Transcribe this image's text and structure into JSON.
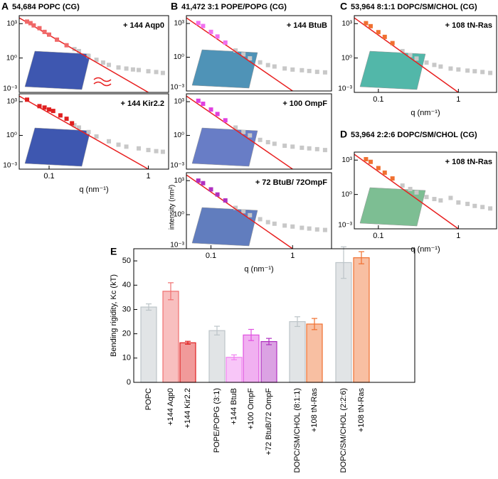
{
  "chart_data": [
    {
      "type": "scatter",
      "label": "A",
      "title": "54,684 POPC (CG)",
      "title_color": "#2e7fb4",
      "annotation": "+ 144 Aqp0",
      "annotation_color": "#f06060",
      "log_x": true,
      "log_y": true,
      "xlim": [
        0.05,
        1.6
      ],
      "ylim": [
        0.001,
        5000
      ],
      "yticks": [
        {
          "value": 0.001,
          "label": "10⁻³"
        },
        {
          "value": 1,
          "label": "10⁰"
        },
        {
          "value": 1000,
          "label": "10³"
        }
      ],
      "series": [
        {
          "style": "square",
          "color": "#c8c8c8",
          "x": [
            0.18,
            0.2,
            0.25,
            0.3,
            0.35,
            0.4,
            0.5,
            0.6,
            0.7,
            0.8,
            1,
            1.2,
            1.4
          ],
          "values": [
            6,
            4,
            1.5,
            0.7,
            0.4,
            0.25,
            0.15,
            0.12,
            0.1,
            0.09,
            0.07,
            0.06,
            0.05
          ]
        },
        {
          "style": "line",
          "color": "#e82020",
          "x": [
            0.05,
            1
          ],
          "values": [
            3200,
            0.001
          ]
        },
        {
          "style": "square",
          "color": "#f06868",
          "x": [
            0.06,
            0.065,
            0.07,
            0.08,
            0.09,
            0.1,
            0.12,
            0.15
          ],
          "values": [
            1500,
            1100,
            700,
            400,
            190,
            110,
            40,
            13
          ]
        }
      ]
    },
    {
      "type": "scatter",
      "annotation": "+ 144 Kir2.2",
      "annotation_color": "#e02828",
      "log_x": true,
      "log_y": true,
      "xlim": [
        0.05,
        1.6
      ],
      "ylim": [
        0.001,
        5000
      ],
      "xticks": [
        0.1,
        1
      ],
      "xlabel": "q (nm⁻¹)",
      "yticks": [
        {
          "value": 0.001,
          "label": "10⁻³"
        },
        {
          "value": 1,
          "label": "10⁰"
        },
        {
          "value": 1000,
          "label": "10³"
        }
      ],
      "series": [
        {
          "style": "square",
          "color": "#c8c8c8",
          "x": [
            0.18,
            0.2,
            0.25,
            0.3,
            0.4,
            0.5,
            0.6,
            0.8,
            1,
            1.2,
            1.4
          ],
          "values": [
            8,
            5,
            2,
            0.8,
            0.3,
            0.15,
            0.1,
            0.07,
            0.05,
            0.04,
            0.035
          ]
        },
        {
          "style": "line",
          "color": "#e82020",
          "x": [
            0.05,
            1
          ],
          "values": [
            3200,
            0.001
          ]
        },
        {
          "style": "square",
          "color": "#e02020",
          "x": [
            0.06,
            0.08,
            0.09,
            0.1,
            0.11,
            0.13,
            0.15,
            0.17
          ],
          "values": [
            1500,
            400,
            300,
            200,
            150,
            60,
            30,
            12
          ]
        }
      ]
    },
    {
      "type": "scatter",
      "label": "B",
      "title": "41,472 3:1 POPE/POPG (CG)",
      "title_color": "#2aa89a",
      "annotation": "+ 144 BtuB",
      "annotation_color": "#f060f0",
      "log_x": true,
      "log_y": true,
      "xlim": [
        0.05,
        3
      ],
      "ylim": [
        0.001,
        5000
      ],
      "yticks": [
        {
          "value": 0.001,
          "label": "10⁻³"
        },
        {
          "value": 1,
          "label": "10⁰"
        },
        {
          "value": 1000,
          "label": "10³"
        }
      ],
      "series": [
        {
          "style": "square",
          "color": "#c8c8c8",
          "x": [
            0.2,
            0.25,
            0.3,
            0.4,
            0.5,
            0.6,
            0.8,
            1,
            1.3,
            1.6,
            2,
            2.5
          ],
          "values": [
            4,
            1.8,
            0.8,
            0.35,
            0.2,
            0.15,
            0.1,
            0.08,
            0.07,
            0.06,
            0.05,
            0.045
          ]
        },
        {
          "style": "line",
          "color": "#e82020",
          "x": [
            0.05,
            1
          ],
          "values": [
            3200,
            0.001
          ]
        },
        {
          "style": "square",
          "color": "#f070f0",
          "x": [
            0.07,
            0.08,
            0.1,
            0.12,
            0.15
          ],
          "values": [
            1100,
            600,
            180,
            70,
            20
          ]
        }
      ]
    },
    {
      "type": "scatter",
      "annotation": "+ 100 OmpF",
      "annotation_color": "#e040e0",
      "log_x": true,
      "log_y": true,
      "xlim": [
        0.05,
        3
      ],
      "ylim": [
        0.001,
        5000
      ],
      "yticks": [
        {
          "value": 0.001,
          "label": "10⁻³"
        },
        {
          "value": 1,
          "label": "10⁰"
        },
        {
          "value": 1000,
          "label": "10³"
        }
      ],
      "series": [
        {
          "style": "square",
          "color": "#c8c8c8",
          "x": [
            0.2,
            0.25,
            0.3,
            0.4,
            0.5,
            0.6,
            0.8,
            1,
            1.3,
            1.6,
            2,
            2.5
          ],
          "values": [
            5,
            2,
            1,
            0.4,
            0.25,
            0.18,
            0.12,
            0.1,
            0.08,
            0.07,
            0.06,
            0.05
          ]
        },
        {
          "style": "line",
          "color": "#e82020",
          "x": [
            0.05,
            1
          ],
          "values": [
            3200,
            0.001
          ]
        },
        {
          "style": "square",
          "color": "#e040e0",
          "x": [
            0.07,
            0.08,
            0.1,
            0.12,
            0.15
          ],
          "values": [
            1200,
            650,
            200,
            80,
            22
          ]
        }
      ]
    },
    {
      "type": "scatter",
      "annotation": "+ 72 BtuB/ 72OmpF",
      "annotation_color": "#b020b0",
      "log_x": true,
      "log_y": true,
      "xlim": [
        0.05,
        3
      ],
      "ylim": [
        0.001,
        5000
      ],
      "xticks": [
        0.1,
        1
      ],
      "xlabel": "q (nm⁻¹)",
      "ylabel": "intensity (nm²)",
      "yticks": [
        {
          "value": 0.001,
          "label": "10⁻³"
        },
        {
          "value": 1,
          "label": "10⁰"
        },
        {
          "value": 1000,
          "label": "10³"
        }
      ],
      "series": [
        {
          "style": "square",
          "color": "#c8c8c8",
          "x": [
            0.2,
            0.25,
            0.3,
            0.4,
            0.5,
            0.6,
            0.8,
            1,
            1.3,
            1.6,
            2,
            2.5
          ],
          "values": [
            4,
            2,
            0.9,
            0.4,
            0.22,
            0.16,
            0.11,
            0.09,
            0.07,
            0.06,
            0.05,
            0.045
          ]
        },
        {
          "style": "line",
          "color": "#e82020",
          "x": [
            0.05,
            1
          ],
          "values": [
            3200,
            0.001
          ]
        },
        {
          "style": "square",
          "color": "#b030c0",
          "x": [
            0.07,
            0.08,
            0.1,
            0.12,
            0.15
          ],
          "values": [
            1000,
            600,
            170,
            60,
            18
          ]
        }
      ]
    },
    {
      "type": "scatter",
      "label": "C",
      "title": "53,964 8:1:1 DOPC/SM/CHOL (CG)",
      "title_color": "#3cc4a8",
      "annotation": "+ 108 tN-Ras",
      "annotation_color": "#f07028",
      "log_x": true,
      "log_y": true,
      "xlim": [
        0.05,
        3
      ],
      "ylim": [
        0.001,
        5000
      ],
      "xticks": [
        0.1,
        1
      ],
      "xlabel": "q (nm⁻¹)",
      "yticks": [
        {
          "value": 0.001,
          "label": "10⁻³"
        },
        {
          "value": 1,
          "label": "10⁰"
        },
        {
          "value": 1000,
          "label": "10³"
        }
      ],
      "series": [
        {
          "style": "square",
          "color": "#c8c8c8",
          "x": [
            0.2,
            0.25,
            0.3,
            0.4,
            0.5,
            0.6,
            0.8,
            1,
            1.3,
            1.6,
            2,
            2.5
          ],
          "values": [
            4,
            1.8,
            0.9,
            0.4,
            0.25,
            0.18,
            0.12,
            0.1,
            0.08,
            0.07,
            0.06,
            0.05
          ]
        },
        {
          "style": "line",
          "color": "#e82020",
          "x": [
            0.05,
            1
          ],
          "values": [
            3200,
            0.001
          ]
        },
        {
          "style": "square",
          "color": "#f07030",
          "x": [
            0.07,
            0.08,
            0.1,
            0.12,
            0.15
          ],
          "values": [
            1100,
            600,
            180,
            70,
            20
          ]
        }
      ]
    },
    {
      "type": "scatter",
      "label": "D",
      "title": "53,964 2:2:6 DOPC/SM/CHOL (CG)",
      "title_color": "#a8e4c8",
      "annotation": "+ 108 tN-Ras",
      "annotation_color": "#f07028",
      "log_x": true,
      "log_y": true,
      "xlim": [
        0.05,
        3
      ],
      "ylim": [
        0.001,
        5000
      ],
      "xticks": [
        0.1,
        1
      ],
      "xlabel": "q (nm⁻¹)",
      "yticks": [
        {
          "value": 0.001,
          "label": "10⁻³"
        },
        {
          "value": 1,
          "label": "10⁰"
        },
        {
          "value": 1000,
          "label": "10³"
        }
      ],
      "series": [
        {
          "style": "square",
          "color": "#c8c8c8",
          "x": [
            0.2,
            0.25,
            0.3,
            0.4,
            0.5,
            0.6,
            0.8,
            1,
            1.3,
            1.6,
            2,
            2.5
          ],
          "values": [
            6,
            3,
            1.5,
            0.6,
            0.4,
            0.3,
            0.5,
            0.2,
            0.15,
            0.1,
            0.08,
            0.06
          ]
        },
        {
          "style": "line",
          "color": "#e82020",
          "x": [
            0.05,
            1
          ],
          "values": [
            3200,
            0.001
          ]
        },
        {
          "style": "square",
          "color": "#f07030",
          "x": [
            0.07,
            0.08,
            0.1,
            0.12,
            0.15
          ],
          "values": [
            1200,
            700,
            200,
            80,
            25
          ]
        }
      ]
    },
    {
      "type": "bar",
      "label": "E",
      "ylabel": "Bending rigidity, Kc (kT)",
      "categories": [
        "POPC",
        "+144 Aqp0",
        "+144 Kir2.2",
        "POPE/POPG (3:1)",
        "+144 BtuB",
        "+100 OmpF",
        "+72 BtuB/72 OmpF",
        "DOPC/SM/CHOL (8:1:1)",
        "+108 tN-Ras",
        "DOPC/SM/CHOL (2:2:6)",
        "+108 tN-Ras"
      ],
      "values": [
        31,
        37.5,
        16.3,
        21.3,
        10.3,
        19.5,
        16.8,
        25,
        24,
        49.3,
        51.3
      ],
      "errors": [
        1.3,
        3.5,
        0.6,
        1.8,
        1,
        2.3,
        1.3,
        2,
        2.3,
        6.5,
        2.5
      ],
      "colors": [
        "#bcc4c8",
        "#f07070",
        "#e02020",
        "#bcc4c8",
        "#f080f0",
        "#e050e0",
        "#b030c0",
        "#bcc4c8",
        "#f07030",
        "#bcc4c8",
        "#f07030"
      ],
      "ylim": [
        0,
        55
      ],
      "yticks": [
        0,
        10,
        20,
        30,
        40,
        50
      ]
    }
  ]
}
